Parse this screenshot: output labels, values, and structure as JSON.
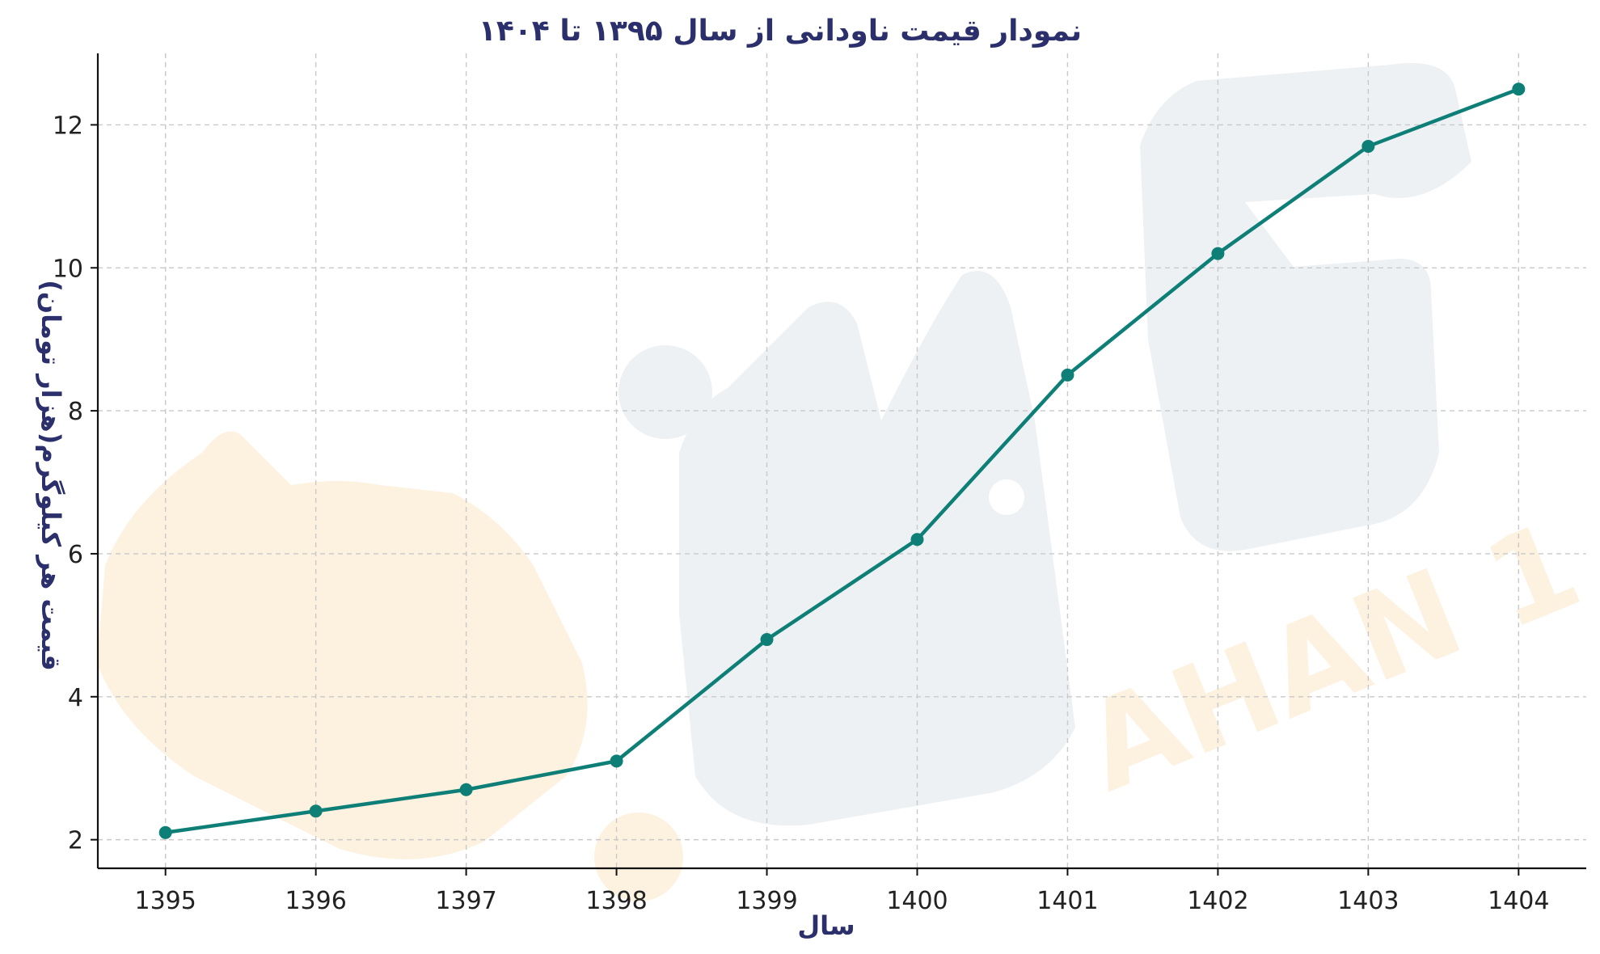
{
  "chart_data": {
    "type": "line",
    "title": "نمودار قیمت ناودانی از سال ۱۳۹۵ تا ۱۴۰۴",
    "xlabel": "سال",
    "ylabel": "قیمت هر کیلوگرم(هزار تومان)",
    "x": [
      1395,
      1396,
      1397,
      1398,
      1399,
      1400,
      1401,
      1402,
      1403,
      1404
    ],
    "x_tick_labels": [
      "1395",
      "1396",
      "1397",
      "1398",
      "1399",
      "1400",
      "1401",
      "1402",
      "1403",
      "1404"
    ],
    "y_ticks": [
      2,
      4,
      6,
      8,
      10,
      12
    ],
    "y_tick_labels": [
      "2",
      "4",
      "6",
      "8",
      "10",
      "12"
    ],
    "xlim": [
      1394.55,
      1404.45
    ],
    "ylim": [
      1.6,
      13.0
    ],
    "series": [
      {
        "values": [
          2.1,
          2.4,
          2.7,
          3.1,
          4.8,
          6.2,
          8.5,
          10.2,
          11.7,
          12.5
        ]
      }
    ],
    "grid": true,
    "line_color": "#0d7f77",
    "watermark_text": "AHAN 1"
  }
}
